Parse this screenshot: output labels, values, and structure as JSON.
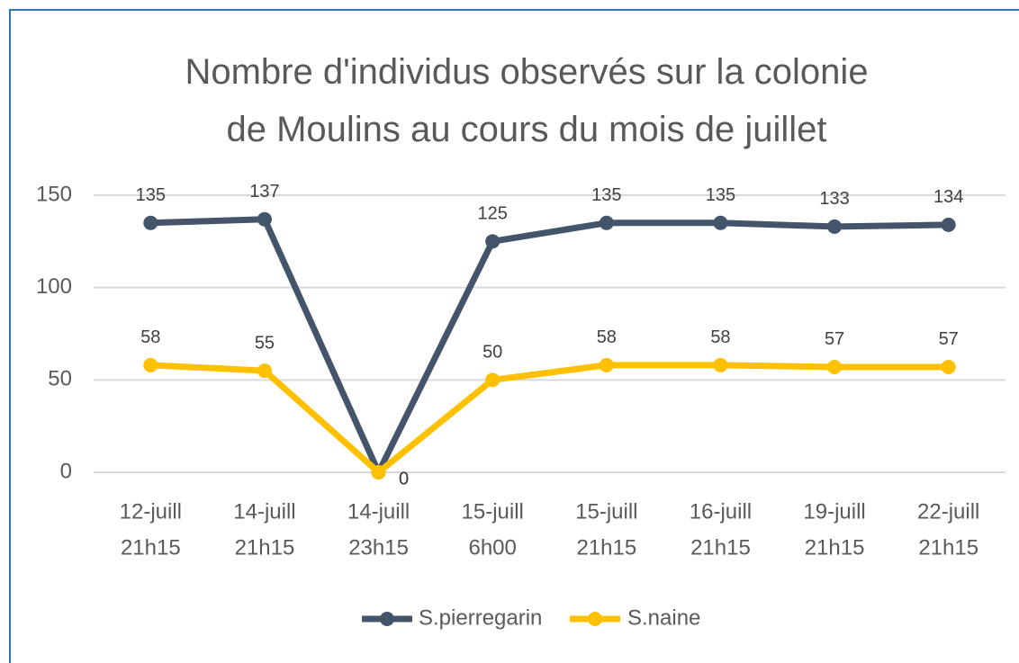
{
  "chart_data": {
    "type": "line",
    "title": "Nombre d'individus observés sur la colonie de Moulins au cours du mois de juillet",
    "categories": [
      [
        "12-juill",
        "21h15"
      ],
      [
        "14-juill",
        "21h15"
      ],
      [
        "14-juill",
        "23h15"
      ],
      [
        "15-juill",
        "6h00"
      ],
      [
        "15-juill",
        "21h15"
      ],
      [
        "16-juill",
        "21h15"
      ],
      [
        "19-juill",
        "21h15"
      ],
      [
        "22-juill",
        "21h15"
      ]
    ],
    "series": [
      {
        "name": "S.pierregarin",
        "color": "#44546a",
        "values": [
          135,
          137,
          0,
          125,
          135,
          135,
          133,
          134
        ]
      },
      {
        "name": "S.naine",
        "color": "#ffc000",
        "values": [
          58,
          55,
          0,
          50,
          58,
          58,
          57,
          57
        ]
      }
    ],
    "ylim": [
      0,
      150
    ],
    "yticks": [
      0,
      50,
      100,
      150
    ],
    "grid": true,
    "legend": "bottom"
  }
}
